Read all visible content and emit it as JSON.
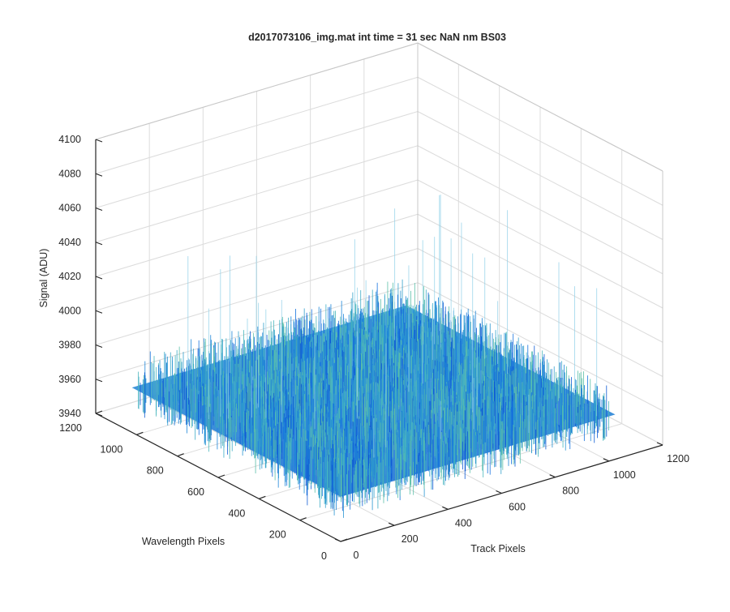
{
  "chart_data": {
    "type": "surface",
    "title": "d2017073106_img.mat int time = 31 sec  NaN nm BS03",
    "xlabel": "Track Pixels",
    "ylabel": "Wavelength Pixels",
    "zlabel": "Signal (ADU)",
    "xlim": [
      0,
      1200
    ],
    "ylim": [
      0,
      1200
    ],
    "zlim": [
      3940,
      4100
    ],
    "xticks": [
      "0",
      "200",
      "400",
      "600",
      "800",
      "1000",
      "1200"
    ],
    "yticks": [
      "0",
      "200",
      "400",
      "600",
      "800",
      "1000",
      "1200"
    ],
    "zticks": [
      "3940",
      "3960",
      "3980",
      "4000",
      "4020",
      "4040",
      "4060",
      "4080",
      "4100"
    ],
    "data_extent": {
      "x": [
        1,
        1024
      ],
      "y": [
        1,
        1024
      ]
    },
    "signal_mean": 3966,
    "signal_typical_range": [
      3950,
      3985
    ],
    "signal_outliers_max": 4062,
    "colormap": "parula",
    "grid": true
  }
}
